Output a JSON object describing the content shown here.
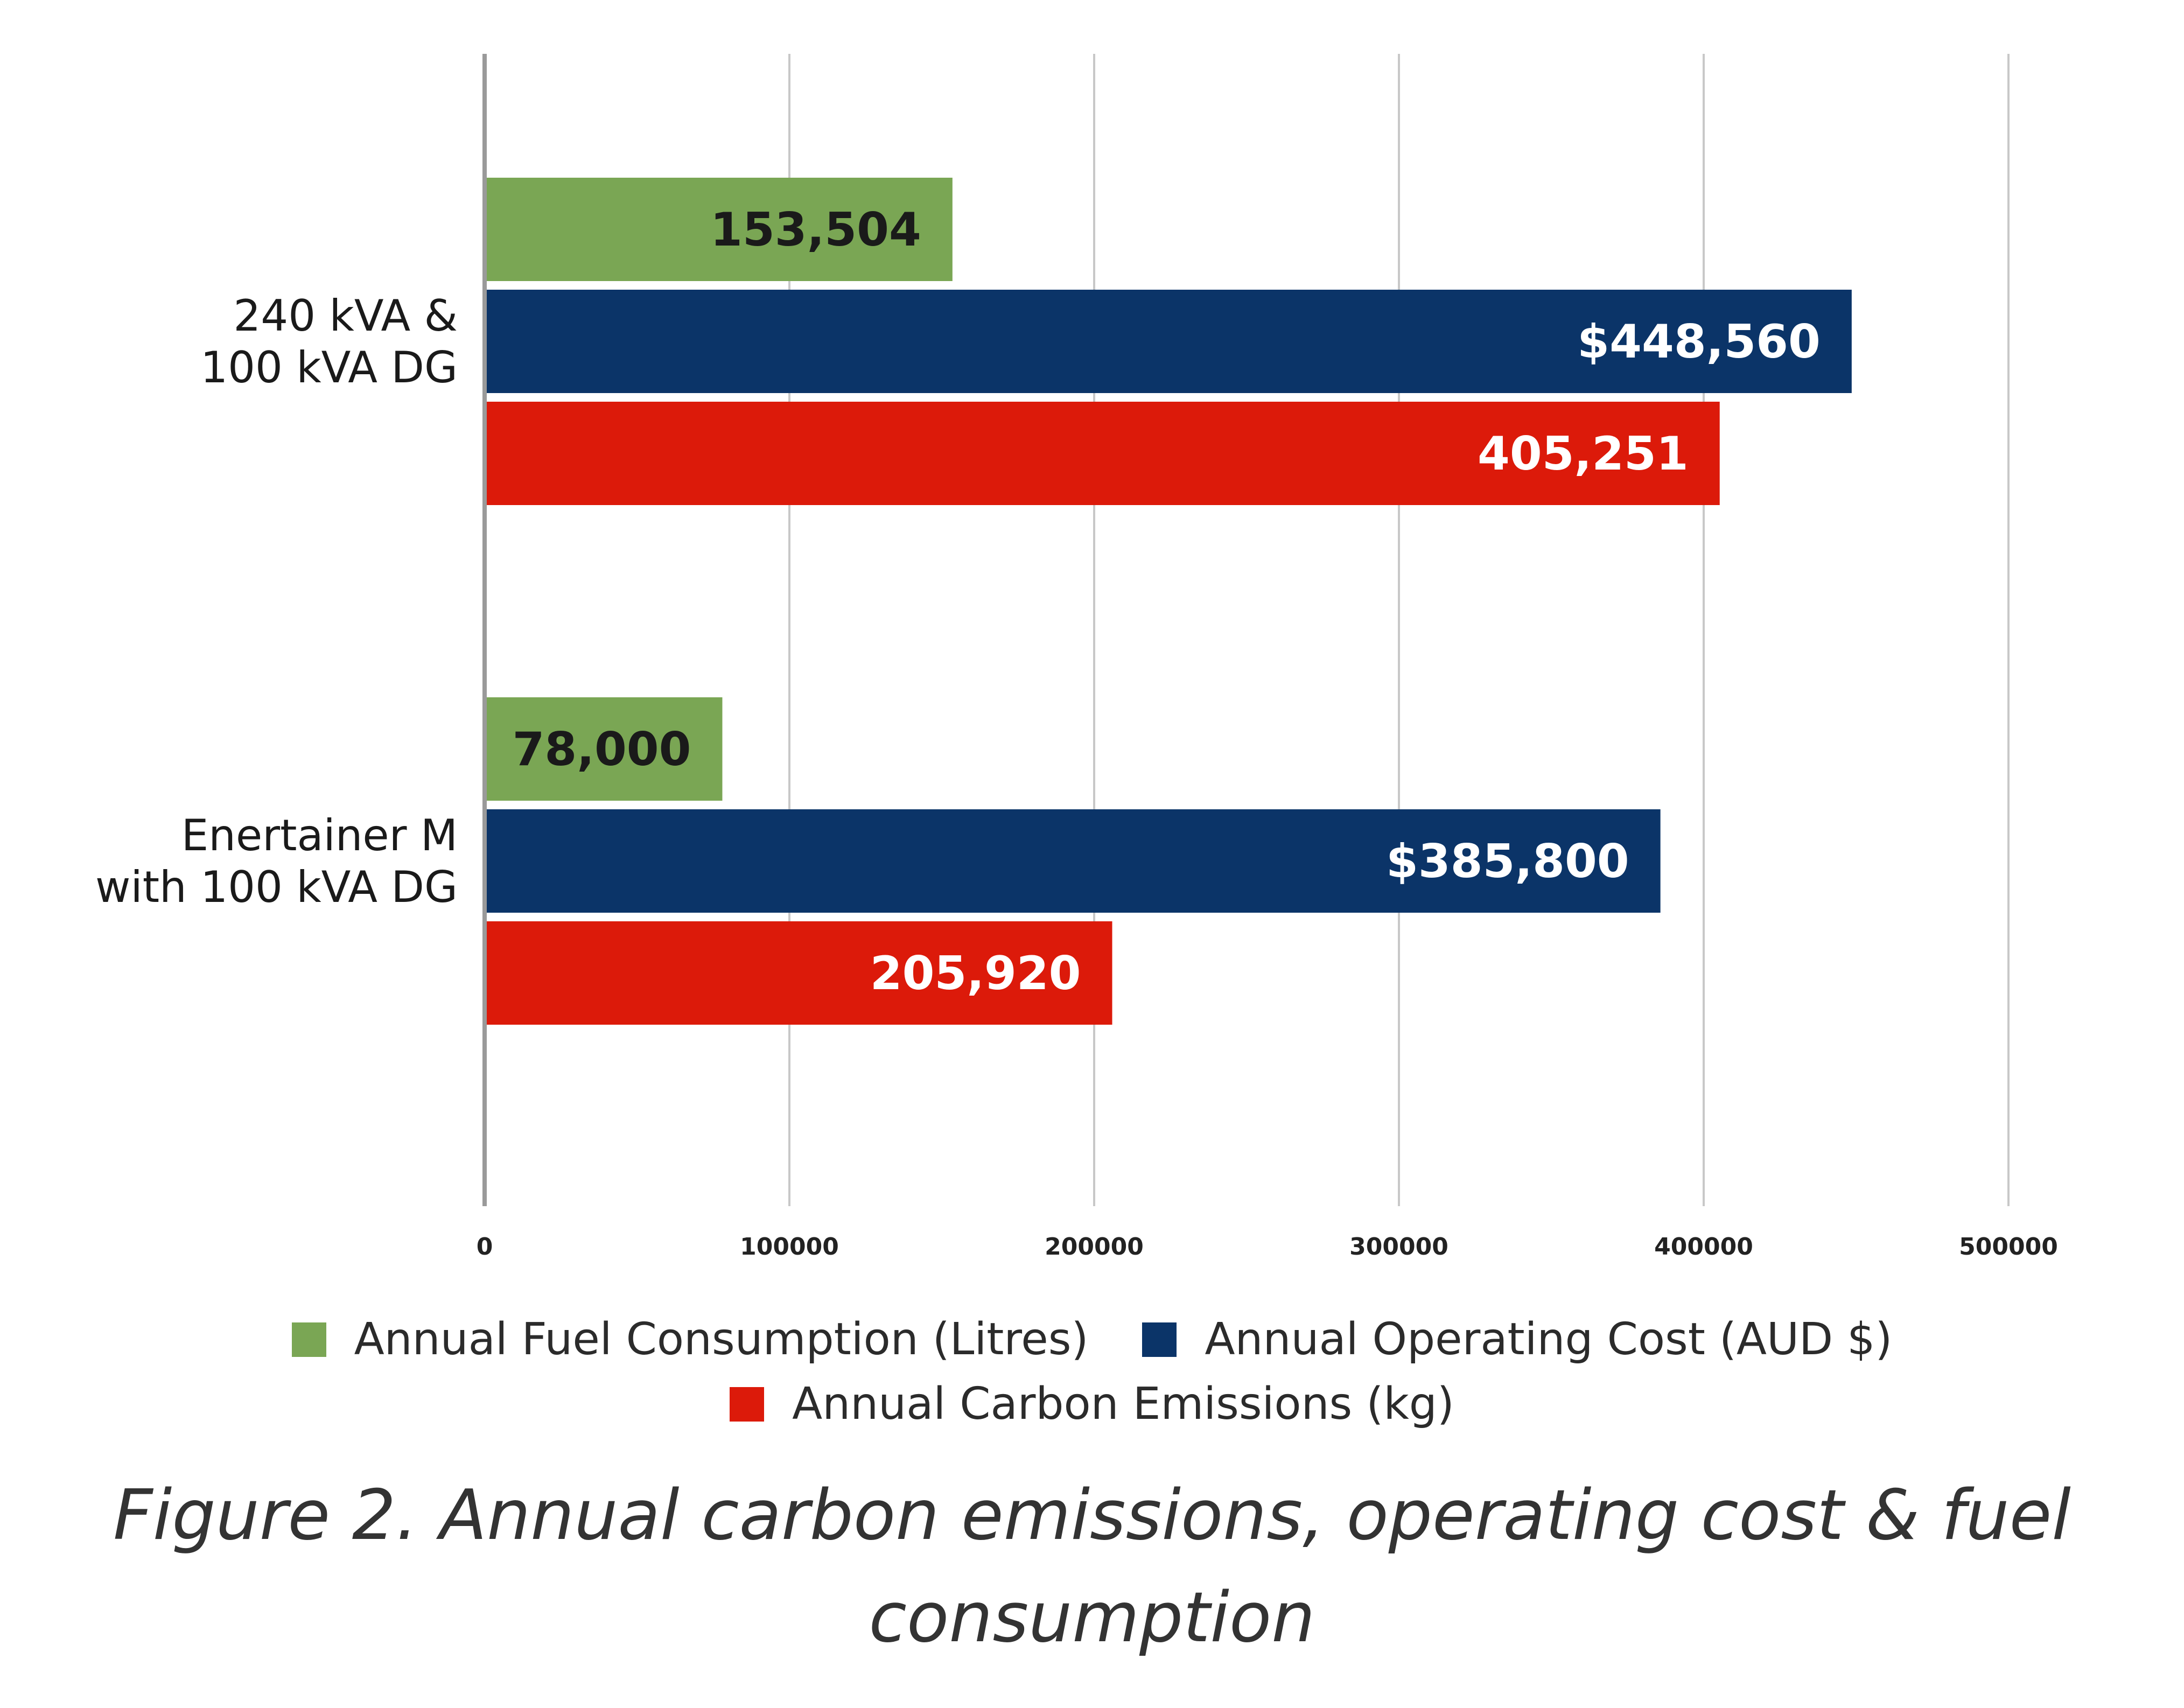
{
  "chart_data": {
    "type": "bar",
    "orientation": "horizontal",
    "categories": [
      [
        "240 kVA &",
        "100 kVA DG"
      ],
      [
        "Enertainer M",
        "with 100 kVA DG"
      ]
    ],
    "series": [
      {
        "name": "Annual Fuel Consumption (Litres)",
        "color": "#7aa654",
        "label_color": "#1a1a1a",
        "values": [
          153504,
          78000
        ],
        "labels": [
          "153,504",
          "78,000"
        ]
      },
      {
        "name": "Annual Operating Cost (AUD $)",
        "color": "#0b3468",
        "label_color": "#ffffff",
        "values": [
          448560,
          385800
        ],
        "labels": [
          "$448,560",
          "$385,800"
        ]
      },
      {
        "name": "Annual Carbon Emissions (kg)",
        "color": "#dc1a0a",
        "label_color": "#ffffff",
        "values": [
          405251,
          205920
        ],
        "labels": [
          "405,251",
          "205,920"
        ]
      }
    ],
    "xlim": [
      0,
      500000
    ],
    "xticks": [
      0,
      100000,
      200000,
      300000,
      400000,
      500000
    ],
    "xtick_labels": [
      "0",
      "100000",
      "200000",
      "300000",
      "400000",
      "500000"
    ],
    "grid": "vertical",
    "legend_placement": "bottom"
  },
  "caption": {
    "line1": "Figure 2. Annual  carbon emissions, operating cost & fuel",
    "line2": "consumption"
  }
}
